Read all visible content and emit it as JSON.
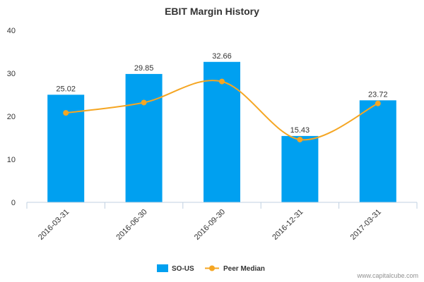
{
  "chart_data": {
    "type": "bar",
    "title": "EBIT Margin History",
    "categories": [
      "2016-03-31",
      "2016-06-30",
      "2016-09-30",
      "2016-12-31",
      "2017-03-31"
    ],
    "series": [
      {
        "name": "SO-US",
        "type": "bar",
        "color": "#00a0f0",
        "values": [
          25.02,
          29.85,
          32.66,
          15.43,
          23.72
        ]
      },
      {
        "name": "Peer Median",
        "type": "line",
        "color": "#f5a623",
        "values": [
          20.8,
          23.2,
          28.1,
          14.6,
          23.0
        ]
      }
    ],
    "data_labels": [
      "25.02",
      "29.85",
      "32.66",
      "15.43",
      "23.72"
    ],
    "yticks": [
      "0",
      "10",
      "20",
      "30",
      "40"
    ],
    "ylim": [
      0,
      40
    ],
    "grid": false,
    "legend_position": "bottom-center",
    "credit": "www.capitalcube.com"
  }
}
